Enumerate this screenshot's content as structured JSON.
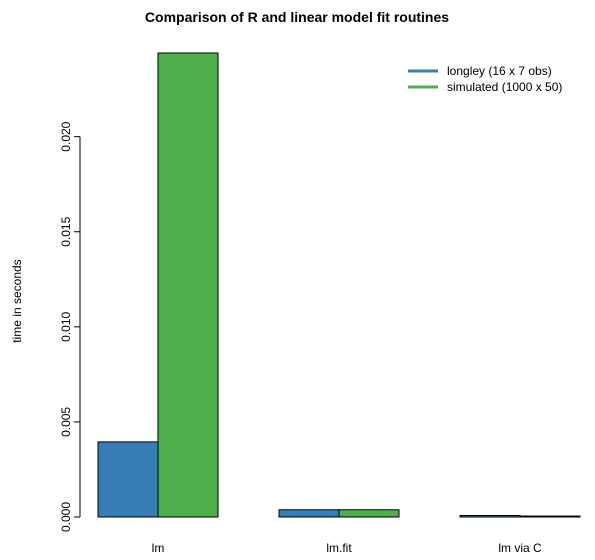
{
  "chart_data": {
    "type": "bar",
    "title": "Comparison of R and linear model fit routines",
    "xlabel": "",
    "ylabel": "time in seconds",
    "categories": [
      "lm",
      "lm.fit",
      "lm via C"
    ],
    "series": [
      {
        "name": "longley (16 x 7 obs)",
        "color": "#377EB8",
        "values": [
          0.00395,
          0.00038,
          8e-05
        ]
      },
      {
        "name": "simulated (1000 x 50)",
        "color": "#4DAF4A",
        "values": [
          0.0244,
          0.00038,
          5e-05
        ]
      }
    ],
    "ylim": [
      0,
      0.0244
    ],
    "yticks": [
      "0.000",
      "0.005",
      "0.010",
      "0.015",
      "0.020"
    ],
    "grid": false,
    "legend_position": "top-right"
  }
}
